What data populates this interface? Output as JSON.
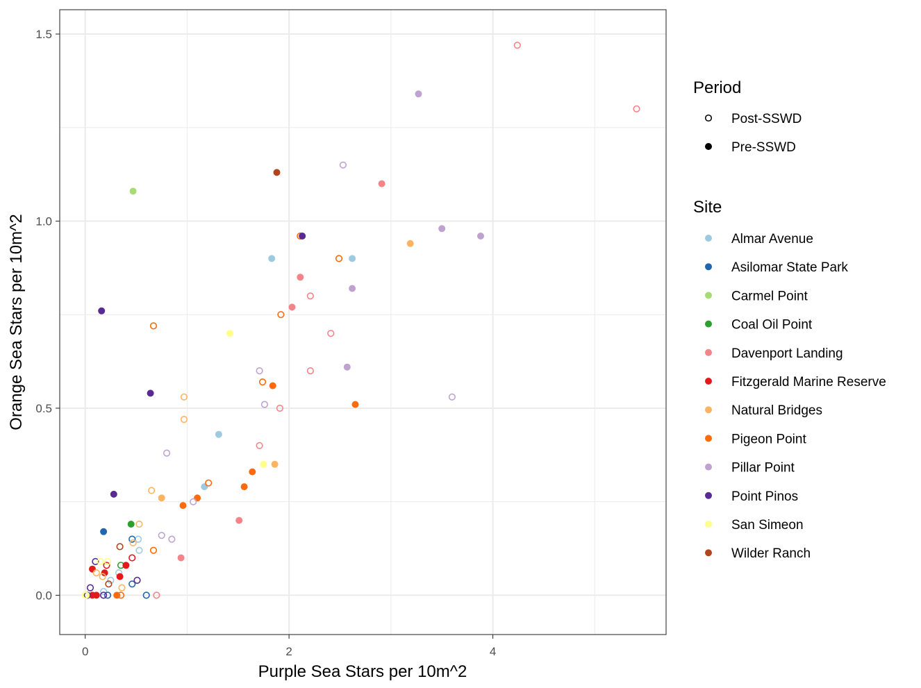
{
  "chart_data": {
    "type": "scatter",
    "xlabel": "Purple Sea Stars per 10m^2",
    "ylabel": "Orange Sea Stars per 10m^2",
    "xlim": [
      -0.25,
      5.7
    ],
    "ylim": [
      -0.105,
      1.565
    ],
    "x_ticks": [
      0,
      2,
      4
    ],
    "y_ticks": [
      0.0,
      0.5,
      1.0,
      1.5
    ],
    "x_tick_labels": [
      "0",
      "2",
      "4"
    ],
    "y_tick_labels": [
      "0.0",
      "0.5",
      "1.0",
      "1.5"
    ],
    "grid": true,
    "legend_placement": "right",
    "legends": {
      "period": {
        "title": "Period",
        "items": [
          {
            "label": "Post-SSWD",
            "shape": "open-circle"
          },
          {
            "label": "Pre-SSWD",
            "shape": "filled-circle"
          }
        ]
      },
      "site": {
        "title": "Site",
        "items": [
          {
            "label": "Almar Avenue",
            "color": "#9ecae1"
          },
          {
            "label": "Asilomar State Park",
            "color": "#2166ac"
          },
          {
            "label": "Carmel Point",
            "color": "#a6dc73"
          },
          {
            "label": "Coal Oil Point",
            "color": "#2ca02c"
          },
          {
            "label": "Davenport Landing",
            "color": "#f4848a"
          },
          {
            "label": "Fitzgerald Marine Reserve",
            "color": "#e31a1c"
          },
          {
            "label": "Natural Bridges",
            "color": "#fdb462"
          },
          {
            "label": "Pigeon Point",
            "color": "#ff6a0c"
          },
          {
            "label": "Pillar Point",
            "color": "#bfa2d0"
          },
          {
            "label": "Point Pinos",
            "color": "#5a2a94"
          },
          {
            "label": "San Simeon",
            "color": "#ffff8a"
          },
          {
            "label": "Wilder Ranch",
            "color": "#b0461e"
          }
        ]
      }
    },
    "series": [
      {
        "name": "Almar Avenue",
        "points": [
          {
            "x": 1.83,
            "y": 0.9,
            "period": "Pre-SSWD"
          },
          {
            "x": 2.62,
            "y": 0.9,
            "period": "Pre-SSWD"
          },
          {
            "x": 1.31,
            "y": 0.43,
            "period": "Pre-SSWD"
          },
          {
            "x": 1.17,
            "y": 0.29,
            "period": "Pre-SSWD"
          },
          {
            "x": 0.52,
            "y": 0.15,
            "period": "Post-SSWD"
          },
          {
            "x": 0.53,
            "y": 0.12,
            "period": "Post-SSWD"
          },
          {
            "x": 0.25,
            "y": 0.04,
            "period": "Post-SSWD"
          },
          {
            "x": 0.18,
            "y": 0.01,
            "period": "Post-SSWD"
          },
          {
            "x": 0.33,
            "y": 0.06,
            "period": "Post-SSWD"
          }
        ]
      },
      {
        "name": "Asilomar State Park",
        "points": [
          {
            "x": 0.18,
            "y": 0.17,
            "period": "Pre-SSWD"
          },
          {
            "x": 0.46,
            "y": 0.15,
            "period": "Post-SSWD"
          },
          {
            "x": 0.46,
            "y": 0.03,
            "period": "Post-SSWD"
          },
          {
            "x": 0.6,
            "y": 0.0,
            "period": "Post-SSWD"
          },
          {
            "x": 0.22,
            "y": 0.0,
            "period": "Post-SSWD"
          }
        ]
      },
      {
        "name": "Carmel Point",
        "points": [
          {
            "x": 0.47,
            "y": 1.08,
            "period": "Pre-SSWD"
          }
        ]
      },
      {
        "name": "Coal Oil Point",
        "points": [
          {
            "x": 0.45,
            "y": 0.19,
            "period": "Pre-SSWD"
          },
          {
            "x": 0.35,
            "y": 0.08,
            "period": "Post-SSWD"
          }
        ]
      },
      {
        "name": "Davenport Landing",
        "points": [
          {
            "x": 4.24,
            "y": 1.47,
            "period": "Post-SSWD"
          },
          {
            "x": 5.41,
            "y": 1.3,
            "period": "Post-SSWD"
          },
          {
            "x": 2.91,
            "y": 1.1,
            "period": "Pre-SSWD"
          },
          {
            "x": 2.11,
            "y": 0.85,
            "period": "Pre-SSWD"
          },
          {
            "x": 2.21,
            "y": 0.8,
            "period": "Post-SSWD"
          },
          {
            "x": 2.03,
            "y": 0.77,
            "period": "Pre-SSWD"
          },
          {
            "x": 2.41,
            "y": 0.7,
            "period": "Post-SSWD"
          },
          {
            "x": 2.21,
            "y": 0.6,
            "period": "Post-SSWD"
          },
          {
            "x": 1.91,
            "y": 0.5,
            "period": "Post-SSWD"
          },
          {
            "x": 1.71,
            "y": 0.4,
            "period": "Post-SSWD"
          },
          {
            "x": 1.51,
            "y": 0.2,
            "period": "Pre-SSWD"
          },
          {
            "x": 0.94,
            "y": 0.1,
            "period": "Pre-SSWD"
          },
          {
            "x": 0.7,
            "y": 0.0,
            "period": "Post-SSWD"
          }
        ]
      },
      {
        "name": "Fitzgerald Marine Reserve",
        "points": [
          {
            "x": 0.07,
            "y": 0.07,
            "period": "Pre-SSWD"
          },
          {
            "x": 0.19,
            "y": 0.06,
            "period": "Pre-SSWD"
          },
          {
            "x": 0.4,
            "y": 0.08,
            "period": "Pre-SSWD"
          },
          {
            "x": 0.34,
            "y": 0.05,
            "period": "Pre-SSWD"
          },
          {
            "x": 0.46,
            "y": 0.1,
            "period": "Post-SSWD"
          },
          {
            "x": 0.11,
            "y": 0.0,
            "period": "Pre-SSWD"
          },
          {
            "x": 0.07,
            "y": 0.0,
            "period": "Pre-SSWD"
          },
          {
            "x": 0.21,
            "y": 0.08,
            "period": "Post-SSWD"
          }
        ]
      },
      {
        "name": "Natural Bridges",
        "points": [
          {
            "x": 3.19,
            "y": 0.94,
            "period": "Pre-SSWD"
          },
          {
            "x": 0.97,
            "y": 0.53,
            "period": "Post-SSWD"
          },
          {
            "x": 0.97,
            "y": 0.47,
            "period": "Post-SSWD"
          },
          {
            "x": 1.86,
            "y": 0.35,
            "period": "Pre-SSWD"
          },
          {
            "x": 0.65,
            "y": 0.28,
            "period": "Post-SSWD"
          },
          {
            "x": 0.75,
            "y": 0.26,
            "period": "Pre-SSWD"
          },
          {
            "x": 0.53,
            "y": 0.19,
            "period": "Post-SSWD"
          },
          {
            "x": 0.47,
            "y": 0.14,
            "period": "Post-SSWD"
          },
          {
            "x": 0.17,
            "y": 0.05,
            "period": "Post-SSWD"
          },
          {
            "x": 0.36,
            "y": 0.02,
            "period": "Post-SSWD"
          },
          {
            "x": 0.11,
            "y": 0.06,
            "period": "Post-SSWD"
          }
        ]
      },
      {
        "name": "Pigeon Point",
        "points": [
          {
            "x": 2.11,
            "y": 0.96,
            "period": "Post-SSWD"
          },
          {
            "x": 2.49,
            "y": 0.9,
            "period": "Post-SSWD"
          },
          {
            "x": 1.92,
            "y": 0.75,
            "period": "Post-SSWD"
          },
          {
            "x": 0.67,
            "y": 0.72,
            "period": "Post-SSWD"
          },
          {
            "x": 1.74,
            "y": 0.57,
            "period": "Post-SSWD"
          },
          {
            "x": 1.84,
            "y": 0.56,
            "period": "Pre-SSWD"
          },
          {
            "x": 2.65,
            "y": 0.51,
            "period": "Pre-SSWD"
          },
          {
            "x": 1.64,
            "y": 0.33,
            "period": "Pre-SSWD"
          },
          {
            "x": 1.21,
            "y": 0.3,
            "period": "Post-SSWD"
          },
          {
            "x": 1.56,
            "y": 0.29,
            "period": "Pre-SSWD"
          },
          {
            "x": 1.1,
            "y": 0.26,
            "period": "Pre-SSWD"
          },
          {
            "x": 0.96,
            "y": 0.24,
            "period": "Pre-SSWD"
          },
          {
            "x": 0.67,
            "y": 0.12,
            "period": "Post-SSWD"
          },
          {
            "x": 0.31,
            "y": 0.0,
            "period": "Pre-SSWD"
          },
          {
            "x": 0.35,
            "y": 0.0,
            "period": "Post-SSWD"
          }
        ]
      },
      {
        "name": "Pillar Point",
        "points": [
          {
            "x": 3.27,
            "y": 1.34,
            "period": "Pre-SSWD"
          },
          {
            "x": 2.53,
            "y": 1.15,
            "period": "Post-SSWD"
          },
          {
            "x": 3.5,
            "y": 0.98,
            "period": "Pre-SSWD"
          },
          {
            "x": 3.88,
            "y": 0.96,
            "period": "Pre-SSWD"
          },
          {
            "x": 2.62,
            "y": 0.82,
            "period": "Pre-SSWD"
          },
          {
            "x": 2.57,
            "y": 0.61,
            "period": "Pre-SSWD"
          },
          {
            "x": 1.71,
            "y": 0.6,
            "period": "Post-SSWD"
          },
          {
            "x": 3.6,
            "y": 0.53,
            "period": "Post-SSWD"
          },
          {
            "x": 1.76,
            "y": 0.51,
            "period": "Post-SSWD"
          },
          {
            "x": 0.8,
            "y": 0.38,
            "period": "Post-SSWD"
          },
          {
            "x": 1.06,
            "y": 0.25,
            "period": "Post-SSWD"
          },
          {
            "x": 0.75,
            "y": 0.16,
            "period": "Post-SSWD"
          },
          {
            "x": 0.85,
            "y": 0.15,
            "period": "Post-SSWD"
          }
        ]
      },
      {
        "name": "Point Pinos",
        "points": [
          {
            "x": 2.13,
            "y": 0.96,
            "period": "Pre-SSWD"
          },
          {
            "x": 0.16,
            "y": 0.76,
            "period": "Pre-SSWD"
          },
          {
            "x": 0.64,
            "y": 0.54,
            "period": "Pre-SSWD"
          },
          {
            "x": 0.28,
            "y": 0.27,
            "period": "Pre-SSWD"
          },
          {
            "x": 0.51,
            "y": 0.04,
            "period": "Post-SSWD"
          },
          {
            "x": 0.1,
            "y": 0.09,
            "period": "Post-SSWD"
          },
          {
            "x": 0.05,
            "y": 0.02,
            "period": "Post-SSWD"
          },
          {
            "x": 0.02,
            "y": 0.0,
            "period": "Post-SSWD"
          },
          {
            "x": 0.18,
            "y": 0.0,
            "period": "Post-SSWD"
          }
        ]
      },
      {
        "name": "San Simeon",
        "points": [
          {
            "x": 1.42,
            "y": 0.7,
            "period": "Pre-SSWD"
          },
          {
            "x": 1.75,
            "y": 0.35,
            "period": "Pre-SSWD"
          },
          {
            "x": 0.22,
            "y": 0.09,
            "period": "Post-SSWD"
          },
          {
            "x": 0.15,
            "y": 0.09,
            "period": "Post-SSWD"
          },
          {
            "x": 0.0,
            "y": 0.0,
            "period": "Post-SSWD"
          },
          {
            "x": 0.01,
            "y": 0.0,
            "period": "Post-SSWD"
          }
        ]
      },
      {
        "name": "Wilder Ranch",
        "points": [
          {
            "x": 1.88,
            "y": 1.13,
            "period": "Pre-SSWD"
          },
          {
            "x": 0.34,
            "y": 0.13,
            "period": "Post-SSWD"
          },
          {
            "x": 0.23,
            "y": 0.03,
            "period": "Post-SSWD"
          }
        ]
      }
    ]
  }
}
